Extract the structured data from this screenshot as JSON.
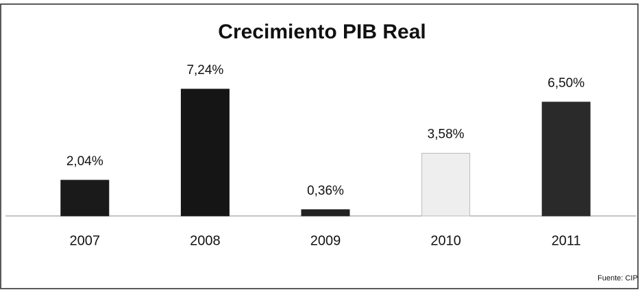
{
  "chart_data": {
    "type": "bar",
    "title": "Crecimiento PIB Real",
    "categories": [
      "2007",
      "2008",
      "2009",
      "2010",
      "2011"
    ],
    "values": [
      2.04,
      7.24,
      0.36,
      3.58,
      6.5
    ],
    "value_labels": [
      "2,04%",
      "7,24%",
      "0,36%",
      "3,58%",
      "6,50%"
    ],
    "colors": [
      "#1a1a1a",
      "#151515",
      "#222222",
      "#eeeeee",
      "#2a2a2a"
    ],
    "source": "Fuente: CIP"
  }
}
